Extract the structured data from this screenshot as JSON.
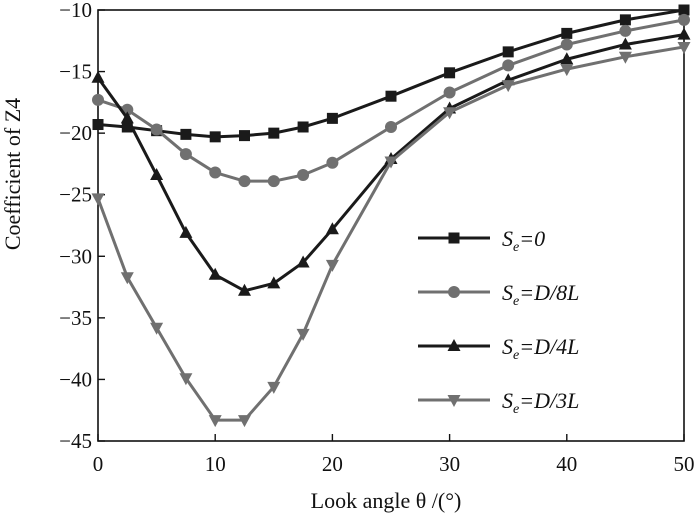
{
  "chart_data": {
    "type": "line",
    "xlabel": "Look angle  θ /(°)",
    "ylabel": "Coefficient of Z4",
    "xlim": [
      0,
      50
    ],
    "ylim": [
      -45,
      -10
    ],
    "xticks": [
      0,
      10,
      20,
      30,
      40,
      50
    ],
    "yticks": [
      -45,
      -40,
      -35,
      -30,
      -25,
      -20,
      -15,
      -10
    ],
    "grid": false,
    "legend": "center-right",
    "series": [
      {
        "name": "Se=0",
        "label_main": "S",
        "label_sub": "e",
        "label_rest": "=0",
        "color": "#1a1a1a",
        "marker": "square",
        "x": [
          0,
          2.5,
          5,
          7.5,
          10,
          12.5,
          15,
          17.5,
          20,
          25,
          30,
          35,
          40,
          45,
          50
        ],
        "y": [
          -19.3,
          -19.5,
          -19.8,
          -20.1,
          -20.3,
          -20.2,
          -20.0,
          -19.5,
          -18.8,
          -17.0,
          -15.1,
          -13.4,
          -11.9,
          -10.8,
          -10.0
        ]
      },
      {
        "name": "Se=D/8L",
        "label_main": "S",
        "label_sub": "e",
        "label_rest": "=D/8L",
        "color": "#707070",
        "marker": "circle",
        "x": [
          0,
          2.5,
          5,
          7.5,
          10,
          12.5,
          15,
          17.5,
          20,
          25,
          30,
          35,
          40,
          45,
          50
        ],
        "y": [
          -17.3,
          -18.1,
          -19.7,
          -21.7,
          -23.2,
          -23.9,
          -23.9,
          -23.4,
          -22.4,
          -19.5,
          -16.7,
          -14.5,
          -12.8,
          -11.7,
          -10.8
        ]
      },
      {
        "name": "Se=D/4L",
        "label_main": "S",
        "label_sub": "e",
        "label_rest": "=D/4L",
        "color": "#1a1a1a",
        "marker": "triangle-up",
        "x": [
          0,
          2.5,
          5,
          7.5,
          10,
          12.5,
          15,
          17.5,
          20,
          25,
          30,
          35,
          40,
          45,
          50
        ],
        "y": [
          -15.5,
          -18.8,
          -23.4,
          -28.1,
          -31.5,
          -32.8,
          -32.2,
          -30.5,
          -27.8,
          -22.1,
          -18.0,
          -15.7,
          -14.0,
          -12.8,
          -12.0
        ]
      },
      {
        "name": "Se=D/3L",
        "label_main": "S",
        "label_sub": "e",
        "label_rest": "=D/3L",
        "color": "#707070",
        "marker": "triangle-down",
        "x": [
          0,
          2.5,
          5,
          7.5,
          10,
          12.5,
          15,
          17.5,
          20,
          25,
          30,
          35,
          40,
          45,
          50
        ],
        "y": [
          -25.3,
          -31.7,
          -35.8,
          -39.9,
          -43.3,
          -43.3,
          -40.6,
          -36.3,
          -30.7,
          -22.3,
          -18.3,
          -16.1,
          -14.8,
          -13.8,
          -13.0
        ]
      }
    ]
  }
}
